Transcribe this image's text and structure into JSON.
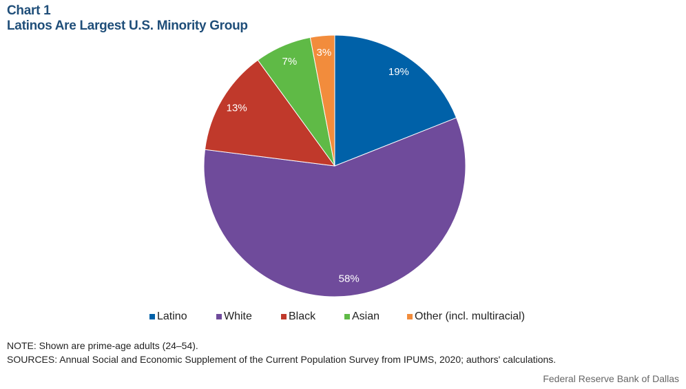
{
  "header": {
    "chart_number": "Chart 1",
    "title": "Latinos Are Largest U.S. Minority Group"
  },
  "chart_data": {
    "type": "pie",
    "title": "Latinos Are Largest U.S. Minority Group",
    "categories": [
      "Latino",
      "White",
      "Black",
      "Asian",
      "Other (incl. multiracial)"
    ],
    "values": [
      19,
      58,
      13,
      7,
      3
    ],
    "data_labels": [
      "19%",
      "58%",
      "13%",
      "7%",
      "3%"
    ],
    "colors": [
      "#0061a8",
      "#6f4b9b",
      "#c0392b",
      "#5fba46",
      "#f28c3c"
    ],
    "start_angle": "12 o'clock",
    "direction": "clockwise",
    "legend_position": "bottom"
  },
  "footer": {
    "note": "NOTE: Shown are prime-age adults (24–54).",
    "sources": "SOURCES: Annual Social and Economic Supplement of the Current Population Survey from IPUMS, 2020; authors' calculations.",
    "credit": "Federal Reserve Bank of Dallas"
  }
}
